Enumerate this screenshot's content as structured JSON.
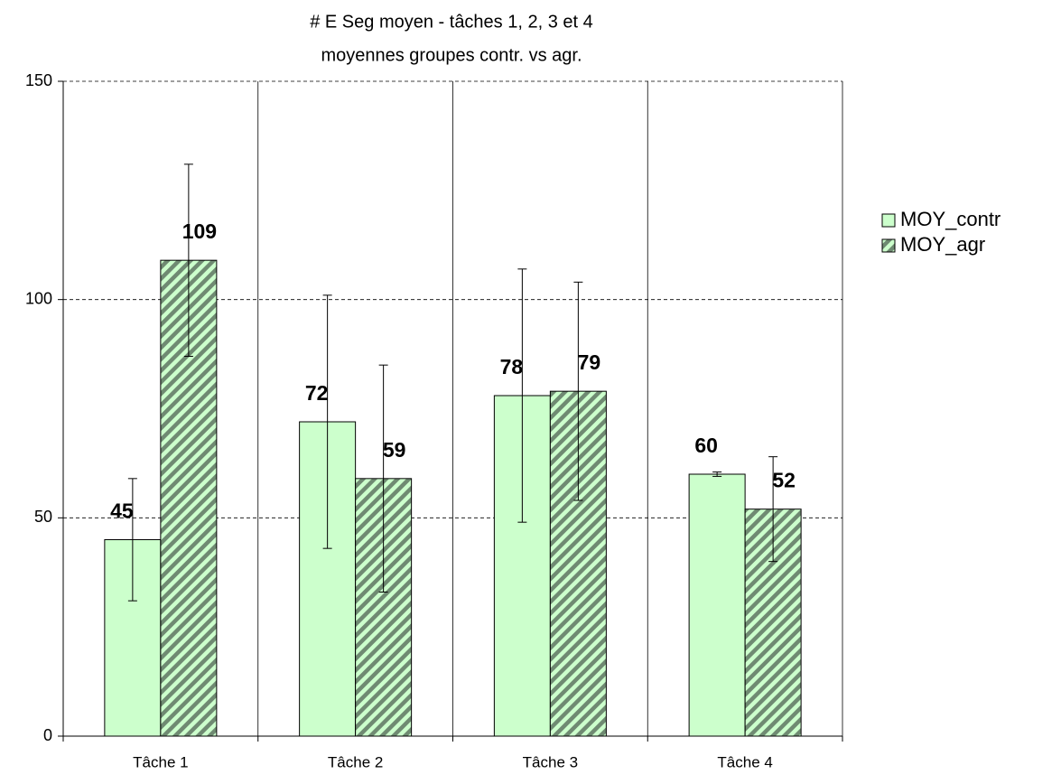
{
  "chart_data": {
    "type": "bar",
    "title": "# E Seg moyen - tâches 1, 2, 3 et 4",
    "subtitle": "moyennes groupes contr. vs agr.",
    "categories": [
      "Tâche 1",
      "Tâche 2",
      "Tâche 3",
      "Tâche 4"
    ],
    "series": [
      {
        "name": "MOY_contr",
        "color": "#ccffcc",
        "values": [
          45,
          72,
          78,
          60
        ],
        "errors": [
          14,
          29,
          29,
          0.5
        ]
      },
      {
        "name": "MOY_agr",
        "color": "#ccffcc",
        "pattern": "diagonal",
        "pattern_color": "#6f8a72",
        "values": [
          109,
          59,
          79,
          52
        ],
        "errors": [
          22,
          26,
          25,
          12
        ]
      }
    ],
    "ylim": [
      0,
      150
    ],
    "yticks": [
      0,
      50,
      100,
      150
    ],
    "grid": true,
    "legend": "right"
  }
}
